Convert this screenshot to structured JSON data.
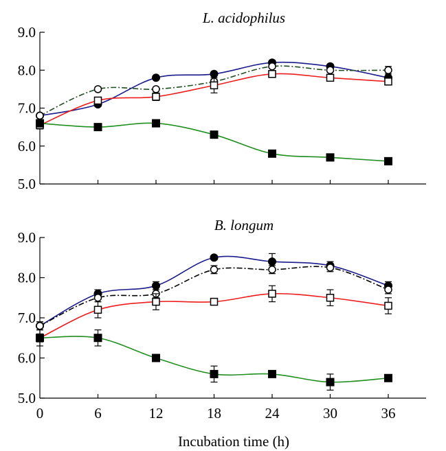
{
  "chart_data": [
    {
      "type": "line",
      "title": "L. acidophilus",
      "xlabel": "",
      "ylabel": "",
      "x": [
        0,
        6,
        12,
        18,
        24,
        30,
        36
      ],
      "x_ticks_labeled": false,
      "ylim": [
        5.0,
        9.0
      ],
      "ytick_labels": [
        "5.0",
        "6.0",
        "7.0",
        "8.0",
        "9.0"
      ],
      "grid": false,
      "legend": "none",
      "series": [
        {
          "marker": "filled-circle",
          "line_style": "solid",
          "color": "#1a1a8c",
          "values": [
            6.8,
            7.1,
            7.8,
            7.9,
            8.2,
            8.1,
            7.8
          ],
          "errors": [
            0.05,
            0.05,
            0.05,
            0.05,
            0.06,
            0.05,
            0.05
          ]
        },
        {
          "marker": "open-circle",
          "line_style": "dash-dot",
          "color": "#1f4d1f",
          "values": [
            6.8,
            7.5,
            7.5,
            7.7,
            8.1,
            8.0,
            8.0
          ],
          "errors": [
            0.05,
            0.05,
            0.05,
            0.06,
            0.05,
            0.05,
            0.1
          ]
        },
        {
          "marker": "open-square",
          "line_style": "solid",
          "color": "#ee1c1c",
          "values": [
            6.55,
            7.2,
            7.3,
            7.6,
            7.9,
            7.8,
            7.7
          ],
          "errors": [
            0.1,
            0.08,
            0.1,
            0.2,
            0.05,
            0.05,
            0.05
          ]
        },
        {
          "marker": "filled-square",
          "line_style": "solid",
          "color": "#1f8f1f",
          "values": [
            6.6,
            6.5,
            6.6,
            6.3,
            5.8,
            5.7,
            5.6
          ],
          "errors": [
            0.05,
            0.08,
            0.05,
            0.05,
            0.05,
            0.05,
            0.03
          ]
        }
      ]
    },
    {
      "type": "line",
      "title": "B. longum",
      "xlabel": "Incubation time (h)",
      "ylabel": "",
      "x": [
        0,
        6,
        12,
        18,
        24,
        30,
        36
      ],
      "xtick_labels": [
        "0",
        "6",
        "12",
        "18",
        "24",
        "30",
        "36"
      ],
      "xlim": [
        0,
        42
      ],
      "ylim": [
        5.0,
        9.0
      ],
      "ytick_labels": [
        "5.0",
        "6.0",
        "7.0",
        "8.0",
        "9.0"
      ],
      "grid": false,
      "legend": "none",
      "series": [
        {
          "marker": "filled-circle",
          "line_style": "solid",
          "color": "#1a1a8c",
          "values": [
            6.8,
            7.6,
            7.8,
            8.5,
            8.4,
            8.3,
            7.8
          ],
          "errors": [
            0.1,
            0.1,
            0.1,
            0.05,
            0.2,
            0.1,
            0.1
          ]
        },
        {
          "marker": "open-circle",
          "line_style": "dash-dot",
          "color": "#000000",
          "values": [
            6.8,
            7.5,
            7.6,
            8.2,
            8.2,
            8.25,
            7.7
          ],
          "errors": [
            0.1,
            0.1,
            0.1,
            0.1,
            0.1,
            0.1,
            0.1
          ]
        },
        {
          "marker": "open-square",
          "line_style": "solid",
          "color": "#ee1c1c",
          "values": [
            6.5,
            7.2,
            7.4,
            7.4,
            7.6,
            7.5,
            7.3
          ],
          "errors": [
            0.1,
            0.2,
            0.2,
            0.05,
            0.2,
            0.2,
            0.2
          ]
        },
        {
          "marker": "filled-square",
          "line_style": "solid",
          "color": "#1f8f1f",
          "values": [
            6.5,
            6.5,
            6.0,
            5.6,
            5.6,
            5.4,
            5.5
          ],
          "errors": [
            0.2,
            0.2,
            0.05,
            0.2,
            0.05,
            0.2,
            0.05
          ]
        }
      ]
    }
  ]
}
